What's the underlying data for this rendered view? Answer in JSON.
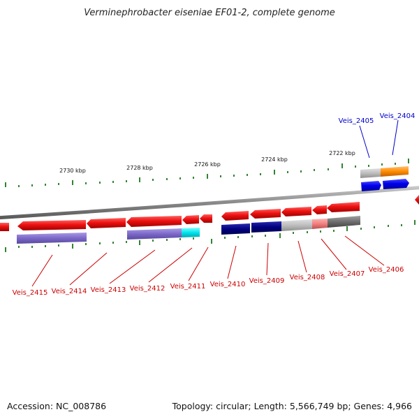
{
  "header": {
    "title": "Verminephrobacter eiseniae EF01-2, complete genome"
  },
  "footer": {
    "accession": "Accession: NC_008786",
    "summary": "Topology: circular; Length: 5,566,749 bp; Genes: 4,966"
  },
  "scale_labels": [
    "2730 kbp",
    "2728 kbp",
    "2726 kbp",
    "2724 kbp",
    "2722 kbp"
  ],
  "genes_top": [
    {
      "label": "Veis_2405",
      "color": "#0000cc"
    },
    {
      "label": "Veis_2404",
      "color": "#0000cc"
    }
  ],
  "genes_bottom": [
    {
      "label": "Veis_2415",
      "color": "#cc0000"
    },
    {
      "label": "Veis_2414",
      "color": "#cc0000"
    },
    {
      "label": "Veis_2413",
      "color": "#cc0000"
    },
    {
      "label": "Veis_2412",
      "color": "#cc0000"
    },
    {
      "label": "Veis_2411",
      "color": "#cc0000"
    },
    {
      "label": "Veis_2410",
      "color": "#cc0000"
    },
    {
      "label": "Veis_2409",
      "color": "#cc0000"
    },
    {
      "label": "Veis_2408",
      "color": "#cc0000"
    },
    {
      "label": "Veis_2407",
      "color": "#cc0000"
    },
    {
      "label": "Veis_2406",
      "color": "#cc0000"
    }
  ],
  "colors": {
    "gene_red": "#ee1111",
    "gene_blue": "#0000ee",
    "cog_orange": "#ff8c00",
    "cog_navy": "#000080",
    "cog_purple": "#7b68c8",
    "cog_cyan": "#00e5ee",
    "cog_grey": "#bebebe",
    "cog_darkgrey": "#6e6e6e",
    "cog_pink": "#f08080",
    "tick_green": "#006400",
    "backbone": "#8a8a8a"
  }
}
